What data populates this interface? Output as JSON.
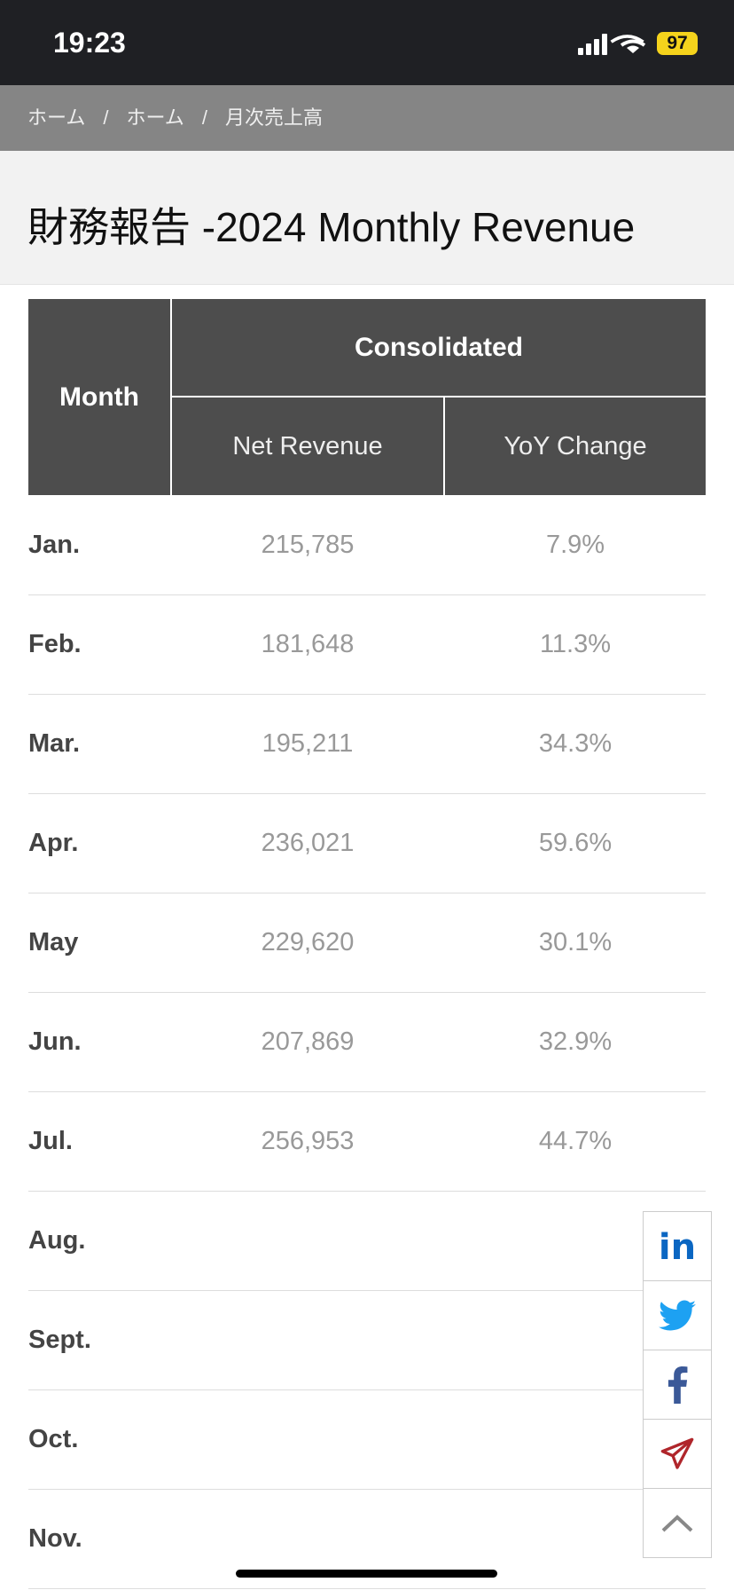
{
  "status_bar": {
    "time": "19:23",
    "battery": "97"
  },
  "breadcrumb": [
    "ホーム",
    "ホーム",
    "月次売上高"
  ],
  "title": "財務報告 -2024 Monthly Revenue",
  "table": {
    "header": {
      "month": "Month",
      "group": "Consolidated",
      "columns": [
        "Net Revenue",
        "YoY Change"
      ]
    },
    "rows": [
      [
        "Jan.",
        "215,785",
        "7.9%"
      ],
      [
        "Feb.",
        "181,648",
        "11.3%"
      ],
      [
        "Mar.",
        "195,211",
        "34.3%"
      ],
      [
        "Apr.",
        "236,021",
        "59.6%"
      ],
      [
        "May",
        "229,620",
        "30.1%"
      ],
      [
        "Jun.",
        "207,869",
        "32.9%"
      ],
      [
        "Jul.",
        "256,953",
        "44.7%"
      ],
      [
        "Aug."
      ],
      [
        "Sept."
      ],
      [
        "Oct."
      ],
      [
        "Nov."
      ]
    ]
  }
}
